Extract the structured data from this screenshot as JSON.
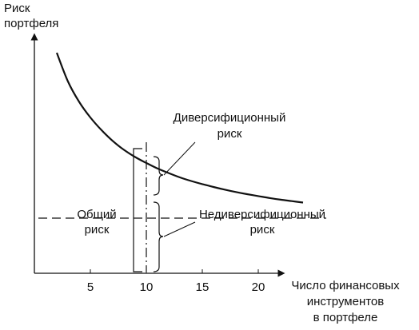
{
  "chart_data": {
    "type": "line",
    "ylabel_lines": [
      "Риск",
      "портфеля"
    ],
    "xlabel_lines": [
      "Число финансовых",
      "инструментов",
      "в портфеле"
    ],
    "xlim": [
      0,
      25
    ],
    "ylim": [
      0,
      10
    ],
    "x_ticks": [
      5,
      10,
      15,
      20
    ],
    "x_tick_labels": [
      "5",
      "10",
      "15",
      "20"
    ],
    "grid": false,
    "series": [
      {
        "x": [
          2,
          3,
          4,
          5,
          6,
          7,
          8,
          9,
          10,
          11,
          12,
          13,
          14,
          15,
          16,
          17,
          18,
          19,
          20,
          21,
          22,
          23,
          24
        ],
        "y": [
          9.2,
          8.0,
          7.15,
          6.5,
          5.97,
          5.52,
          5.15,
          4.85,
          4.6,
          4.37,
          4.18,
          4.0,
          3.85,
          3.72,
          3.6,
          3.49,
          3.39,
          3.3,
          3.22,
          3.14,
          3.07,
          3.01,
          2.95
        ]
      }
    ],
    "reference_line": {
      "y": 2.3,
      "style": "dashed"
    },
    "marker_line": {
      "x": 10,
      "style": "dash-dot"
    },
    "annotations": {
      "diversifiable_lines": [
        "Диверсифиционный",
        "риск"
      ],
      "nondiversifiable_lines": [
        "Недиверсифиционный",
        "риск"
      ],
      "total_lines": [
        "Общий",
        "риск"
      ]
    }
  }
}
